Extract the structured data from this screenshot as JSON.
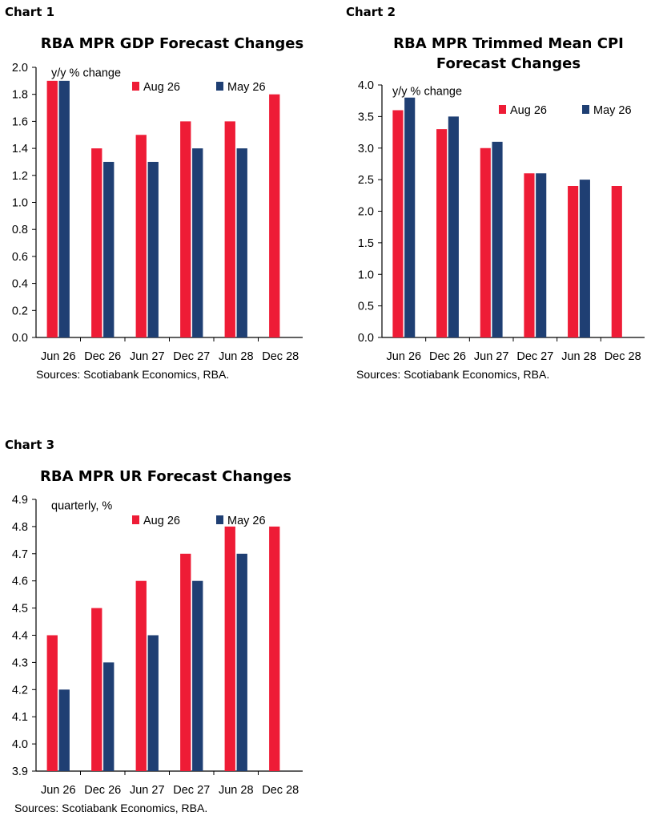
{
  "colors": {
    "aug": "#ee1c36",
    "may": "#1f3f73"
  },
  "charts": [
    {
      "label": "Chart 1",
      "title_lines": [
        "RBA MPR GDP Forecast Changes"
      ],
      "source": "Sources: Scotiabank Economics, RBA."
    },
    {
      "label": "Chart 2",
      "title_lines": [
        "RBA MPR Trimmed Mean CPI",
        "Forecast Changes"
      ],
      "source": "Sources: Scotiabank Economics, RBA."
    },
    {
      "label": "Chart 3",
      "title_lines": [
        "RBA MPR UR Forecast Changes"
      ],
      "source": "Sources: Scotiabank Economics, RBA."
    }
  ],
  "chart_data": [
    {
      "type": "bar",
      "title": "RBA MPR GDP Forecast Changes",
      "unit_label": "y/y % change",
      "categories": [
        "Jun 26",
        "Dec 26",
        "Jun 27",
        "Dec 27",
        "Jun 28",
        "Dec 28"
      ],
      "series": [
        {
          "name": "Aug 26",
          "values": [
            1.9,
            1.4,
            1.5,
            1.6,
            1.6,
            1.8
          ]
        },
        {
          "name": "May 26",
          "values": [
            1.9,
            1.3,
            1.3,
            1.4,
            1.4,
            null
          ]
        }
      ],
      "ylim": [
        0.0,
        2.0
      ],
      "yticks": [
        "0.0",
        "0.2",
        "0.4",
        "0.6",
        "0.8",
        "1.0",
        "1.2",
        "1.4",
        "1.6",
        "1.8",
        "2.0"
      ],
      "legend_position": "top",
      "grid": false
    },
    {
      "type": "bar",
      "title": "RBA MPR Trimmed Mean CPI Forecast Changes",
      "unit_label": "y/y % change",
      "categories": [
        "Jun 26",
        "Dec 26",
        "Jun 27",
        "Dec 27",
        "Jun 28",
        "Dec 28"
      ],
      "series": [
        {
          "name": "Aug 26",
          "values": [
            3.6,
            3.3,
            3.0,
            2.6,
            2.4,
            2.4
          ]
        },
        {
          "name": "May 26",
          "values": [
            3.8,
            3.5,
            3.1,
            2.6,
            2.5,
            null
          ]
        }
      ],
      "ylim": [
        0.0,
        4.0
      ],
      "yticks": [
        "0.0",
        "0.5",
        "1.0",
        "1.5",
        "2.0",
        "2.5",
        "3.0",
        "3.5",
        "4.0"
      ],
      "legend_position": "top",
      "grid": false
    },
    {
      "type": "bar",
      "title": "RBA MPR UR Forecast Changes",
      "unit_label": "quarterly, %",
      "categories": [
        "Jun 26",
        "Dec 26",
        "Jun 27",
        "Dec 27",
        "Jun 28",
        "Dec 28"
      ],
      "series": [
        {
          "name": "Aug 26",
          "values": [
            4.4,
            4.5,
            4.6,
            4.7,
            4.8,
            4.8
          ]
        },
        {
          "name": "May 26",
          "values": [
            4.2,
            4.3,
            4.4,
            4.6,
            4.7,
            null
          ]
        }
      ],
      "ylim": [
        3.9,
        4.9
      ],
      "yticks": [
        "3.9",
        "4.0",
        "4.1",
        "4.2",
        "4.3",
        "4.4",
        "4.5",
        "4.6",
        "4.7",
        "4.8",
        "4.9"
      ],
      "legend_position": "top",
      "grid": false
    }
  ]
}
